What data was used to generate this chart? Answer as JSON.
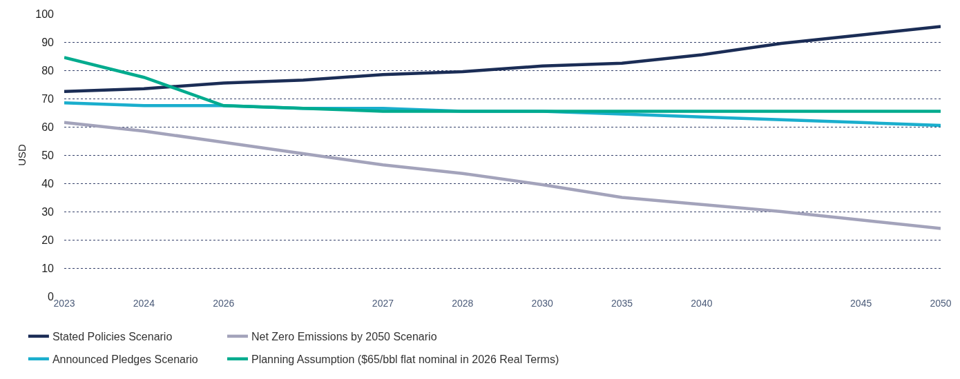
{
  "chart_data": {
    "type": "line",
    "ylabel": "USD",
    "categories": [
      "2023",
      "2024",
      "2026",
      null,
      "2027",
      "2028",
      "2030",
      "2035",
      "2040",
      null,
      "2045",
      "2050"
    ],
    "ylim": [
      0,
      100
    ],
    "yticks": [
      0,
      10,
      20,
      30,
      40,
      50,
      60,
      70,
      80,
      90,
      100
    ],
    "grid": "y",
    "legend": "bottom",
    "marker": "none",
    "line_style": "solid",
    "series": [
      {
        "name": "Stated Policies Scenario",
        "color": "#1b2d56",
        "values": [
          72.5,
          73.5,
          75.5,
          76.5,
          78.5,
          79.5,
          81.5,
          82.5,
          85.5,
          89.5,
          92.5,
          95.5
        ]
      },
      {
        "name": "Net Zero Emissions by 2050 Scenario",
        "color": "#a3a3bb",
        "values": [
          61.5,
          58.5,
          54.5,
          50.5,
          46.5,
          43.5,
          39.5,
          35,
          32.5,
          30,
          27,
          24
        ]
      },
      {
        "name": "Announced Pledges Scenario",
        "color": "#1aaecd",
        "values": [
          68.5,
          67.5,
          67.5,
          66.5,
          66.5,
          65.5,
          65.5,
          64.5,
          63.5,
          62.5,
          61.5,
          60.5
        ]
      },
      {
        "name": "Planning Assumption ($65/bbl flat nominal in 2026 Real Terms)",
        "color": "#00ab8e",
        "values": [
          84.5,
          77.5,
          67.5,
          66.5,
          65.5,
          65.5,
          65.5,
          65.5,
          65.5,
          65.5,
          65.5,
          65.5
        ]
      }
    ]
  }
}
